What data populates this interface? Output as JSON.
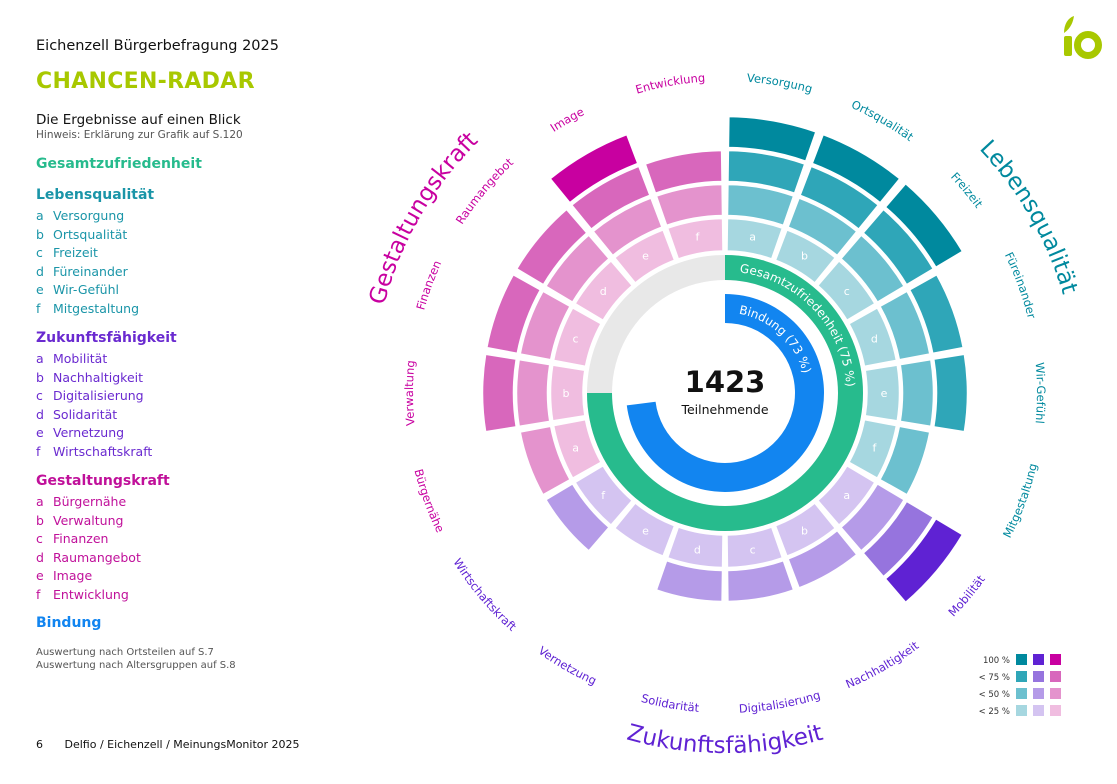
{
  "header": {
    "report_title": "Eichenzell Bürgerbefragung 2025",
    "radar_heading": "CHANCEN-RADAR",
    "summary_title": "Die Ergebnisse auf einen Blick",
    "summary_note": "Hinweis: Erklärung zur Grafik auf S.120",
    "logo_text": "io"
  },
  "legend": {
    "gesamt": "Gesamtzufriedenheit",
    "lebens": {
      "heading": "Lebensqualität",
      "items": [
        {
          "letter": "a",
          "label": "Versorgung"
        },
        {
          "letter": "b",
          "label": "Ortsqualität"
        },
        {
          "letter": "c",
          "label": "Freizeit"
        },
        {
          "letter": "d",
          "label": "Füreinander"
        },
        {
          "letter": "e",
          "label": "Wir-Gefühl"
        },
        {
          "letter": "f",
          "label": "Mitgestaltung"
        }
      ]
    },
    "zukunft": {
      "heading": "Zukunftsfähigkeit",
      "items": [
        {
          "letter": "a",
          "label": "Mobilität"
        },
        {
          "letter": "b",
          "label": "Nachhaltigkeit"
        },
        {
          "letter": "c",
          "label": "Digitalisierung"
        },
        {
          "letter": "d",
          "label": "Solidarität"
        },
        {
          "letter": "e",
          "label": "Vernetzung"
        },
        {
          "letter": "f",
          "label": "Wirtschaftskraft"
        }
      ]
    },
    "gestaltung": {
      "heading": "Gestaltungskraft",
      "items": [
        {
          "letter": "a",
          "label": "Bürgernähe"
        },
        {
          "letter": "b",
          "label": "Verwaltung"
        },
        {
          "letter": "c",
          "label": "Finanzen"
        },
        {
          "letter": "d",
          "label": "Raumangebot"
        },
        {
          "letter": "e",
          "label": "Image"
        },
        {
          "letter": "f",
          "label": "Entwicklung"
        }
      ]
    },
    "bindung": "Bindung"
  },
  "references": [
    "Auswertung nach Ortsteilen auf S.7",
    "Auswertung nach Altersgruppen auf S.8"
  ],
  "footer": {
    "page_number": "6",
    "source": "Delfio / Eichenzell / MeinungsMonitor 2025"
  },
  "colors": {
    "lebens": [
      "#a6d7e0",
      "#6cc0cf",
      "#2fa6b8",
      "#00899e"
    ],
    "zukunft": [
      "#d4c4f1",
      "#b59be8",
      "#9674de",
      "#5f22d3"
    ],
    "gestaltung": [
      "#f0bde0",
      "#e493cd",
      "#d867bc",
      "#c800a0"
    ],
    "gesamt": "#27bb8d",
    "bindung": "#1285f0",
    "track": "#e8e8e8",
    "accent": "#a8c800"
  },
  "chart_data": {
    "type": "radial",
    "center_value": "1423",
    "center_label": "Teilnehmende",
    "gesamt_label": "Gesamtzufriedenheit (75 %)",
    "gesamt_percent": 75,
    "bindung_label": "Bindung (73 %)",
    "bindung_percent": 73,
    "scale_labels": [
      "100 %",
      "< 75 %",
      "< 50 %",
      "< 25 %"
    ],
    "dimensions": [
      {
        "key": "lebens",
        "name": "Lebensqualität",
        "segments": [
          {
            "letter": "a",
            "label": "Versorgung",
            "level": 4
          },
          {
            "letter": "b",
            "label": "Ortsqualität",
            "level": 4
          },
          {
            "letter": "c",
            "label": "Freizeit",
            "level": 4
          },
          {
            "letter": "d",
            "label": "Füreinander",
            "level": 3
          },
          {
            "letter": "e",
            "label": "Wir-Gefühl",
            "level": 3
          },
          {
            "letter": "f",
            "label": "Mitgestaltung",
            "level": 2
          }
        ]
      },
      {
        "key": "zukunft",
        "name": "Zukunftsfähigkeit",
        "segments": [
          {
            "letter": "a",
            "label": "Mobilität",
            "level": 4
          },
          {
            "letter": "b",
            "label": "Nachhaltigkeit",
            "level": 2
          },
          {
            "letter": "c",
            "label": "Digitalisierung",
            "level": 2
          },
          {
            "letter": "d",
            "label": "Solidarität",
            "level": 2
          },
          {
            "letter": "e",
            "label": "Vernetzung",
            "level": 1
          },
          {
            "letter": "f",
            "label": "Wirtschaftskraft",
            "level": 2
          }
        ]
      },
      {
        "key": "gestaltung",
        "name": "Gestaltungskraft",
        "segments": [
          {
            "letter": "a",
            "label": "Bürgernähe",
            "level": 2
          },
          {
            "letter": "b",
            "label": "Verwaltung",
            "level": 3
          },
          {
            "letter": "c",
            "label": "Finanzen",
            "level": 3
          },
          {
            "letter": "d",
            "label": "Raumangebot",
            "level": 3
          },
          {
            "letter": "e",
            "label": "Image",
            "level": 4
          },
          {
            "letter": "f",
            "label": "Entwicklung",
            "level": 3
          }
        ]
      }
    ]
  }
}
